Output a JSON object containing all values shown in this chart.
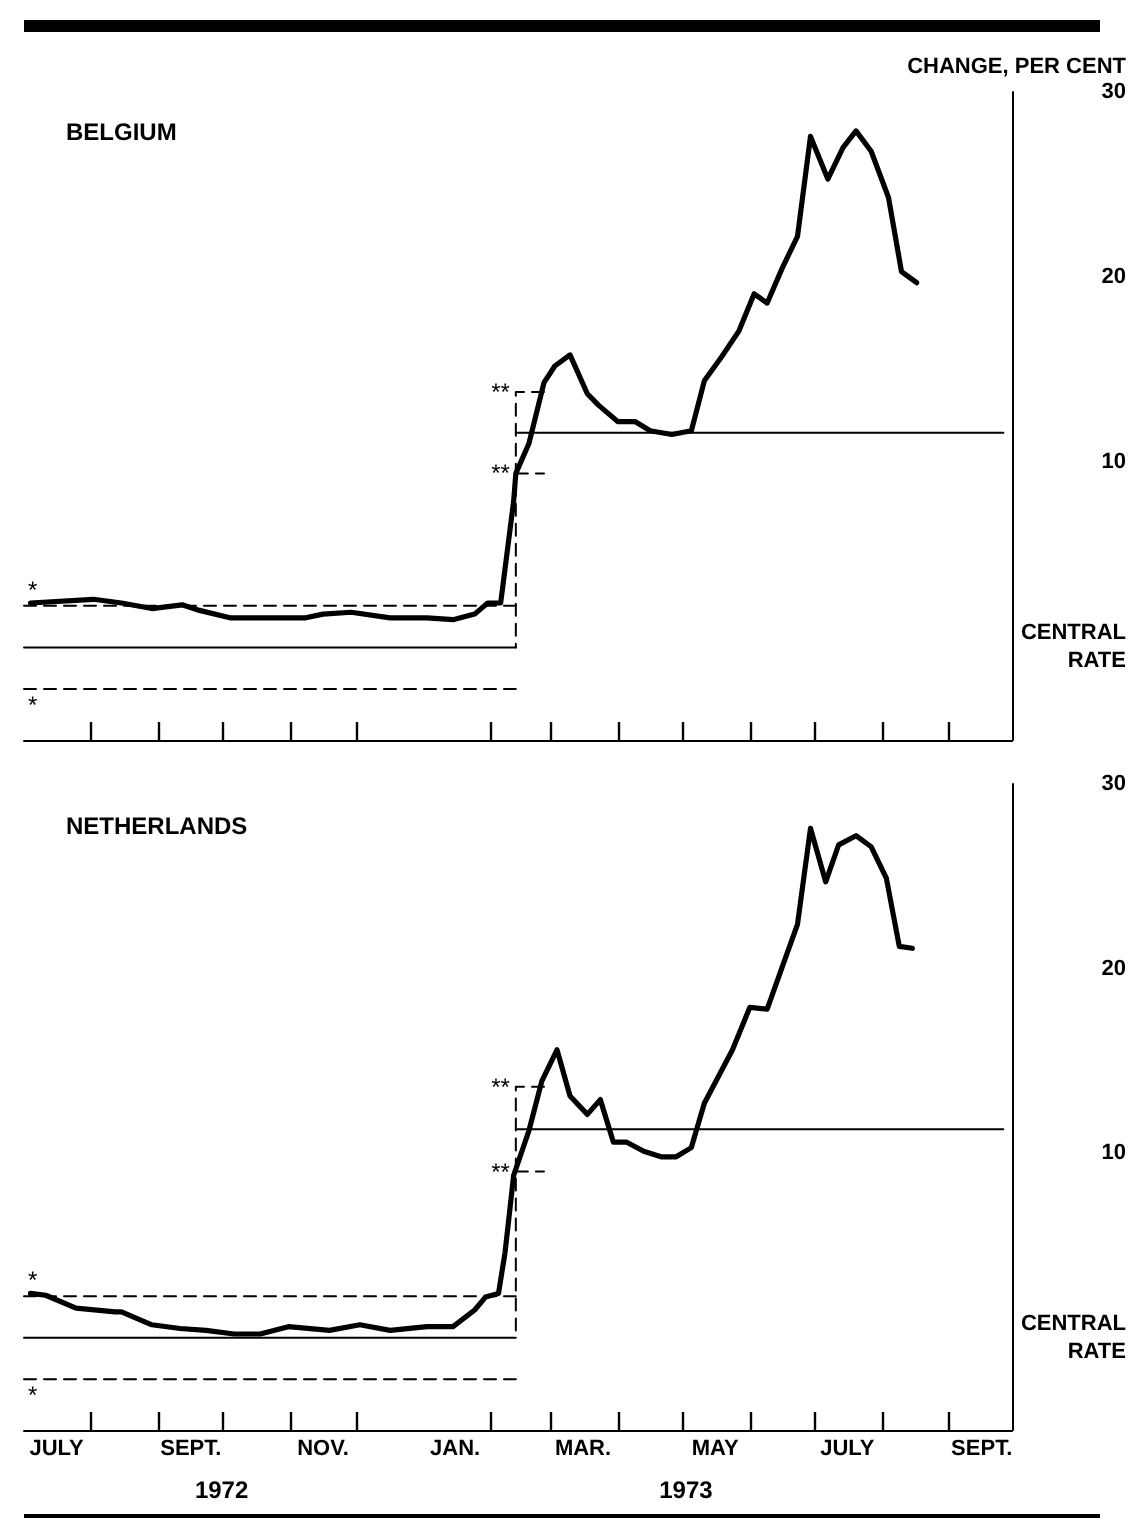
{
  "chart_data": [
    {
      "type": "line",
      "title": "BELGIUM",
      "ylabel": "CHANGE, PER CENT",
      "marker": "none",
      "tick_labels": "y",
      "xlim": [
        "1972-07-01",
        "1973-09-30"
      ],
      "ylim": [
        -5,
        30
      ],
      "yticks": [
        {
          "value": 0,
          "label": "CENTRAL RATE"
        },
        10,
        20,
        30
      ],
      "xticks": [
        {
          "value": "1972-08-01",
          "label": null
        },
        {
          "value": "1972-09-01",
          "label": null
        },
        {
          "value": "1972-10-01",
          "label": null
        },
        {
          "value": "1972-11-01",
          "label": null
        },
        {
          "value": "1972-12-01",
          "label": null
        },
        {
          "value": "1973-02-01",
          "label": null
        },
        {
          "value": "1973-03-01",
          "label": null
        },
        {
          "value": "1973-04-01",
          "label": null
        },
        {
          "value": "1973-05-01",
          "label": null
        },
        {
          "value": "1973-06-01",
          "label": null
        },
        {
          "value": "1973-07-01",
          "label": null
        },
        {
          "value": "1973-08-01",
          "label": null
        },
        {
          "value": "1973-09-01",
          "label": null
        }
      ],
      "series": [
        {
          "color": "#000000",
          "line_style": "solid",
          "x": [
            "1972-07-04",
            "1972-08-02",
            "1972-08-15",
            "1972-08-29",
            "1972-09-12",
            "1972-09-20",
            "1972-10-04",
            "1972-10-18",
            "1972-11-08",
            "1972-11-16",
            "1972-11-29",
            "1972-12-17",
            "1973-01-03",
            "1973-01-15",
            "1973-01-25",
            "1973-01-31",
            "1973-02-06",
            "1973-02-12",
            "1973-02-13",
            "1973-02-19",
            "1973-02-26",
            "1973-03-03",
            "1973-03-10",
            "1973-03-18",
            "1973-03-23",
            "1973-04-01",
            "1973-04-09",
            "1973-04-16",
            "1973-04-26",
            "1973-05-05",
            "1973-05-11",
            "1973-05-19",
            "1973-05-27",
            "1973-06-03",
            "1973-06-09",
            "1973-06-16",
            "1973-06-23",
            "1973-06-29",
            "1973-07-07",
            "1973-07-14",
            "1973-07-20",
            "1973-07-27",
            "1973-08-04",
            "1973-08-10",
            "1973-08-17"
          ],
          "values": [
            2.4,
            2.6,
            2.4,
            2.1,
            2.3,
            2.0,
            1.6,
            1.6,
            1.6,
            1.8,
            1.9,
            1.6,
            1.6,
            1.5,
            1.8,
            2.4,
            2.4,
            7.9,
            9.4,
            11.0,
            14.3,
            15.2,
            15.8,
            13.7,
            13.1,
            12.2,
            12.2,
            11.7,
            11.5,
            11.7,
            14.4,
            15.7,
            17.1,
            19.1,
            18.6,
            20.5,
            22.2,
            27.6,
            25.3,
            27.0,
            27.9,
            26.8,
            24.3,
            20.3,
            19.7
          ]
        },
        {
          "color": "#000000",
          "line_style": "solid",
          "x": [
            "1972-07-01",
            "1973-02-13"
          ],
          "values": [
            0,
            0
          ]
        },
        {
          "color": "#000000",
          "line_style": "solid",
          "x": [
            "1973-02-13",
            "1973-09-26"
          ],
          "values": [
            11.6,
            11.6
          ]
        },
        {
          "color": "#000000",
          "line_style": "dashed",
          "x": [
            "1972-07-01",
            "1973-02-13"
          ],
          "values": [
            2.25,
            2.25
          ]
        },
        {
          "color": "#000000",
          "line_style": "dashed",
          "x": [
            "1972-07-01",
            "1973-02-13"
          ],
          "values": [
            -2.25,
            -2.25
          ]
        },
        {
          "color": "#000000",
          "line_style": "dashed",
          "x": [
            "1973-02-26",
            "1973-02-13",
            "1973-02-13"
          ],
          "values": [
            13.8,
            13.8,
            0
          ]
        },
        {
          "color": "#000000",
          "line_style": "dashed",
          "x": [
            "1973-02-13",
            "1973-02-26"
          ],
          "values": [
            9.4,
            9.4
          ]
        }
      ],
      "annotations": [
        {
          "text": "*",
          "x": "1972-07-01",
          "y": 2.25
        },
        {
          "text": "*",
          "x": "1972-07-01",
          "y": -2.25
        },
        {
          "text": "**",
          "x": "1973-02-13",
          "y": 13.8
        },
        {
          "text": "**",
          "x": "1973-02-13",
          "y": 9.4
        }
      ]
    },
    {
      "type": "line",
      "title": "NETHERLANDS",
      "marker": "none",
      "xlim": [
        "1972-07-01",
        "1973-09-30"
      ],
      "ylim": [
        -5,
        30
      ],
      "yticks": [
        {
          "value": 0,
          "label": "CENTRAL RATE"
        },
        10,
        20,
        30
      ],
      "xticks": [
        {
          "value": "1972-07-16",
          "label": "JULY"
        },
        {
          "value": "1972-08-01",
          "label": null
        },
        {
          "value": "1972-09-01",
          "label": null
        },
        {
          "value": "1972-09-16",
          "label": "SEPT."
        },
        {
          "value": "1972-10-01",
          "label": null
        },
        {
          "value": "1972-11-01",
          "label": null
        },
        {
          "value": "1972-11-16",
          "label": "NOV."
        },
        {
          "value": "1972-12-01",
          "label": null
        },
        {
          "value": "1973-01-16",
          "label": "JAN."
        },
        {
          "value": "1973-02-01",
          "label": null
        },
        {
          "value": "1973-03-01",
          "label": null
        },
        {
          "value": "1973-03-16",
          "label": "MAR."
        },
        {
          "value": "1973-04-01",
          "label": null
        },
        {
          "value": "1973-05-01",
          "label": null
        },
        {
          "value": "1973-05-16",
          "label": "MAY"
        },
        {
          "value": "1973-06-01",
          "label": null
        },
        {
          "value": "1973-07-01",
          "label": null
        },
        {
          "value": "1973-07-16",
          "label": "JULY"
        },
        {
          "value": "1973-08-01",
          "label": null
        },
        {
          "value": "1973-09-01",
          "label": null
        },
        {
          "value": "1973-09-16",
          "label": "SEPT."
        }
      ],
      "series": [
        {
          "color": "#000000",
          "line_style": "solid",
          "x": [
            "1972-07-04",
            "1972-07-11",
            "1972-07-25",
            "1972-08-12",
            "1972-08-15",
            "1972-08-29",
            "1972-09-11",
            "1972-09-23",
            "1972-10-06",
            "1972-10-18",
            "1972-10-31",
            "1972-11-19",
            "1972-12-03",
            "1972-12-17",
            "1973-01-03",
            "1973-01-15",
            "1973-01-25",
            "1973-01-30",
            "1973-02-05",
            "1973-02-08",
            "1973-02-12",
            "1973-02-19",
            "1973-02-25",
            "1973-03-04",
            "1973-03-10",
            "1973-03-18",
            "1973-03-24",
            "1973-03-30",
            "1973-04-05",
            "1973-04-13",
            "1973-04-21",
            "1973-04-28",
            "1973-05-05",
            "1973-05-11",
            "1973-05-24",
            "1973-06-01",
            "1973-06-09",
            "1973-06-16",
            "1973-06-23",
            "1973-06-29",
            "1973-07-06",
            "1973-07-12",
            "1973-07-20",
            "1973-07-27",
            "1973-08-03",
            "1973-08-09",
            "1973-08-15"
          ],
          "values": [
            2.4,
            2.3,
            1.6,
            1.4,
            1.4,
            0.7,
            0.5,
            0.4,
            0.2,
            0.2,
            0.6,
            0.4,
            0.7,
            0.4,
            0.6,
            0.6,
            1.5,
            2.2,
            2.4,
            4.6,
            8.8,
            11.2,
            13.9,
            15.6,
            13.1,
            12.1,
            12.9,
            10.6,
            10.6,
            10.1,
            9.8,
            9.8,
            10.3,
            12.7,
            15.6,
            17.9,
            17.8,
            20.1,
            22.4,
            27.6,
            24.7,
            26.7,
            27.2,
            26.6,
            24.9,
            21.2,
            21.1
          ]
        },
        {
          "color": "#000000",
          "line_style": "solid",
          "x": [
            "1972-07-01",
            "1973-02-13"
          ],
          "values": [
            0,
            0
          ]
        },
        {
          "color": "#000000",
          "line_style": "solid",
          "x": [
            "1973-02-13",
            "1973-09-26"
          ],
          "values": [
            11.3,
            11.3
          ]
        },
        {
          "color": "#000000",
          "line_style": "dashed",
          "x": [
            "1972-07-01",
            "1973-02-13"
          ],
          "values": [
            2.25,
            2.25
          ]
        },
        {
          "color": "#000000",
          "line_style": "dashed",
          "x": [
            "1972-07-01",
            "1973-02-13"
          ],
          "values": [
            -2.25,
            -2.25
          ]
        },
        {
          "color": "#000000",
          "line_style": "dashed",
          "x": [
            "1973-02-26",
            "1973-02-13",
            "1973-02-13"
          ],
          "values": [
            13.6,
            13.6,
            0
          ]
        },
        {
          "color": "#000000",
          "line_style": "dashed",
          "x": [
            "1973-02-13",
            "1973-02-26"
          ],
          "values": [
            9.0,
            9.0
          ]
        }
      ],
      "annotations": [
        {
          "text": "*",
          "x": "1972-07-01",
          "y": 2.25
        },
        {
          "text": "*",
          "x": "1972-07-01",
          "y": -2.25
        },
        {
          "text": "**",
          "x": "1973-02-13",
          "y": 13.6
        },
        {
          "text": "**",
          "x": "1973-02-13",
          "y": 9.0
        },
        "1972",
        "1973"
      ]
    }
  ]
}
